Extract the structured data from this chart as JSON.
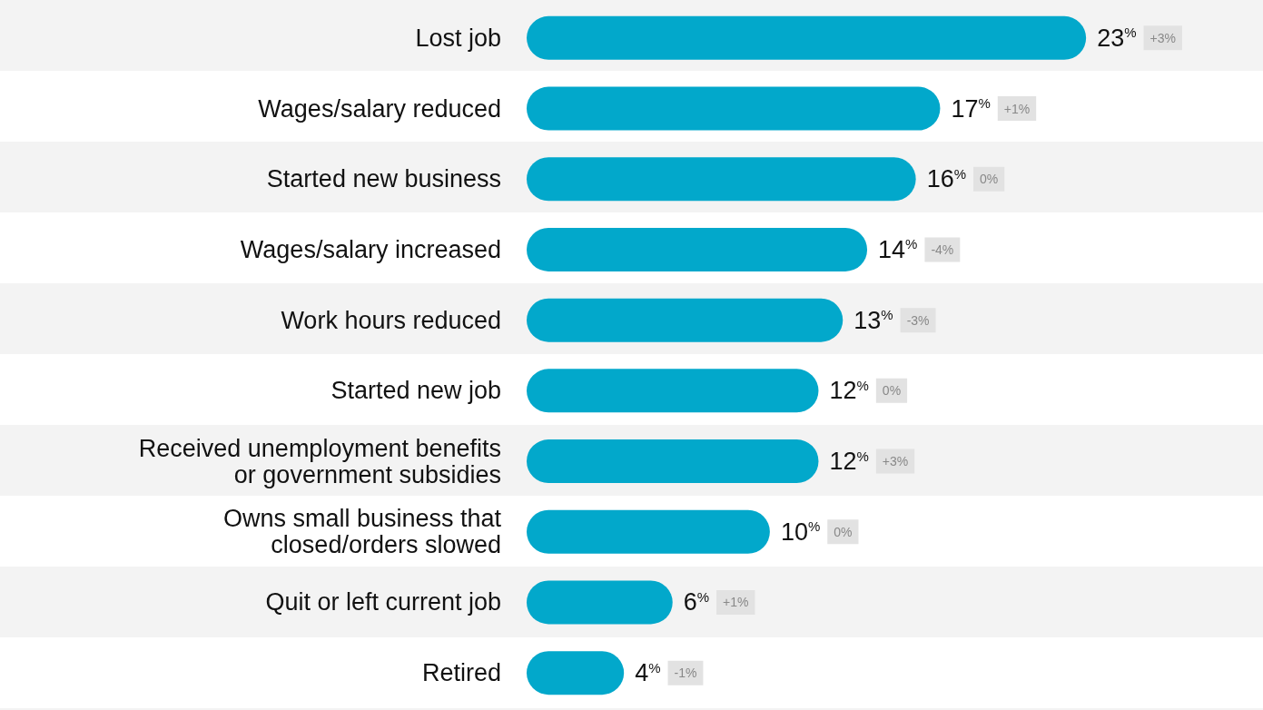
{
  "chart_data": {
    "type": "bar",
    "orientation": "horizontal",
    "color": "#02a8cb",
    "categories": [
      "Lost job",
      "Wages/salary reduced",
      "Started new business",
      "Wages/salary increased",
      "Work hours reduced",
      "Started new job",
      "Received unemployment benefits\nor government subsidies",
      "Owns small business that\nclosed/orders slowed",
      "Quit or left current job",
      "Retired"
    ],
    "values": [
      23,
      17,
      16,
      14,
      13,
      12,
      12,
      10,
      6,
      4
    ],
    "value_labels": [
      "23%",
      "17%",
      "16%",
      "14%",
      "13%",
      "12%",
      "12%",
      "10%",
      "6%",
      "4%"
    ],
    "annotations": [
      "+3%",
      "+1%",
      "0%",
      "-4%",
      "-3%",
      "0%",
      "+3%",
      "0%",
      "+1%",
      "-1%"
    ]
  }
}
